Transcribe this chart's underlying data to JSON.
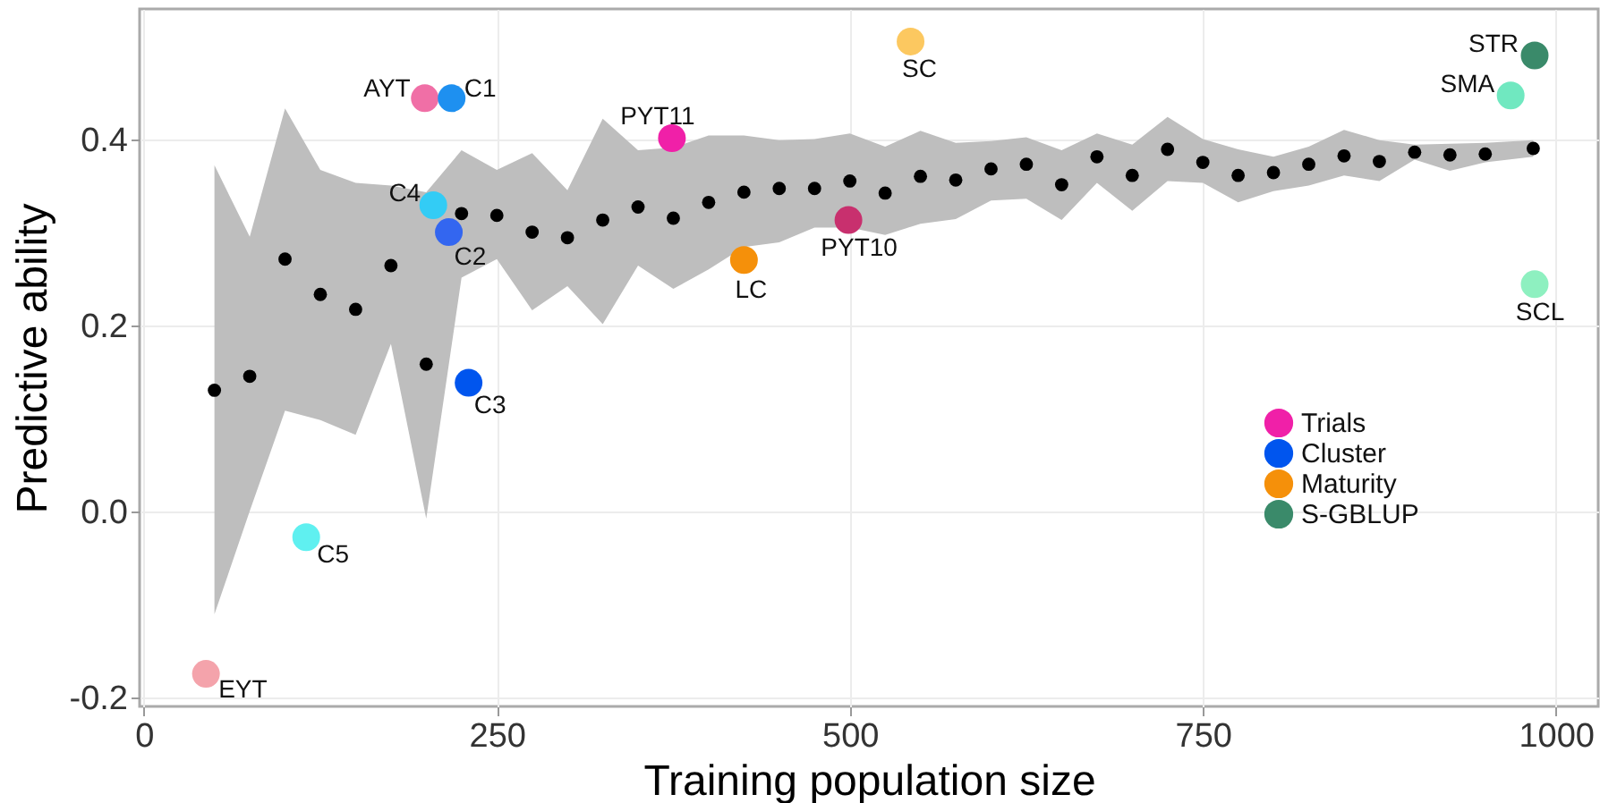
{
  "chart_data": {
    "type": "scatter",
    "xlabel": "Training population size",
    "ylabel": "Predictive ability",
    "xlim": [
      -3,
      1030
    ],
    "ylim": [
      -0.21,
      0.54
    ],
    "xticks": [
      0,
      250,
      500,
      750,
      1000
    ],
    "yticks": [
      -0.2,
      {
        "value": 0,
        "label": "0.0"
      },
      0.2,
      0.4
    ],
    "grid": true,
    "legend": "bottom right",
    "marker": "circle",
    "series": [
      {
        "color": "#000000",
        "x": [
          50,
          75,
          100,
          125,
          150,
          175,
          200,
          225,
          250,
          275,
          300,
          325,
          350,
          375,
          400,
          425,
          450,
          475,
          500,
          525,
          550,
          575,
          600,
          625,
          650,
          675,
          700,
          725,
          750,
          775,
          800,
          825,
          850,
          875,
          900,
          925,
          950,
          984
        ],
        "values": [
          0.13,
          0.145,
          0.271,
          0.233,
          0.217,
          0.264,
          0.158,
          0.32,
          0.318,
          0.3,
          0.294,
          0.313,
          0.327,
          0.315,
          0.332,
          0.343,
          0.347,
          0.347,
          0.355,
          0.342,
          0.36,
          0.356,
          0.368,
          0.373,
          0.351,
          0.381,
          0.361,
          0.389,
          0.375,
          0.361,
          0.364,
          0.373,
          0.382,
          0.376,
          0.386,
          0.383,
          0.384,
          0.39
        ],
        "lower": [
          -0.111,
          0.0,
          0.108,
          0.098,
          0.082,
          0.18,
          -0.008,
          0.251,
          0.271,
          0.216,
          0.242,
          0.201,
          0.264,
          0.239,
          0.26,
          0.284,
          0.289,
          0.305,
          0.305,
          0.297,
          0.309,
          0.314,
          0.334,
          0.336,
          0.313,
          0.353,
          0.323,
          0.355,
          0.353,
          0.332,
          0.344,
          0.35,
          0.361,
          0.355,
          0.378,
          0.366,
          0.375,
          0.381
        ],
        "upper": [
          0.372,
          0.295,
          0.433,
          0.367,
          0.353,
          0.35,
          0.343,
          0.388,
          0.367,
          0.385,
          0.345,
          0.422,
          0.388,
          0.391,
          0.404,
          0.404,
          0.399,
          0.4,
          0.406,
          0.392,
          0.409,
          0.396,
          0.398,
          0.402,
          0.388,
          0.406,
          0.394,
          0.424,
          0.4,
          0.389,
          0.381,
          0.392,
          0.41,
          0.399,
          0.394,
          0.395,
          0.396,
          0.399
        ]
      },
      {
        "name": "Trials",
        "color": "#f020a8",
        "x": [
          44,
          199,
          374,
          499
        ],
        "values": [
          -0.175,
          0.444,
          0.401,
          0.313
        ],
        "colors": [
          "#f4a3ab",
          "#f06fa6",
          "#f020a8",
          "#c8306e"
        ]
      },
      {
        "name": "Cluster",
        "color": "#0055ee",
        "x": [
          218,
          205,
          216,
          230,
          115
        ],
        "values": [
          0.444,
          0.329,
          0.3,
          0.138,
          -0.028
        ],
        "colors": [
          "#1e90f0",
          "#33ccf5",
          "#3366f0",
          "#0055ee",
          "#5ff0f0"
        ]
      },
      {
        "name": "Maturity",
        "color": "#f5900a",
        "x": [
          425,
          543
        ],
        "values": [
          0.27,
          0.505
        ],
        "colors": [
          "#f5900a",
          "#fcc860"
        ]
      },
      {
        "name": "S-GBLUP",
        "color": "#3a8a6a",
        "x": [
          985,
          968,
          985
        ],
        "values": [
          0.49,
          0.447,
          0.244
        ],
        "colors": [
          "#3a8a6a",
          "#70e8c0",
          "#8ef0c0"
        ]
      }
    ],
    "annotations": [
      {
        "text": "EYT",
        "x": 44,
        "y": -0.175
      },
      {
        "text": "C5",
        "x": 115,
        "y": -0.028
      },
      {
        "text": "AYT",
        "x": 199,
        "y": 0.444
      },
      {
        "text": "C1",
        "x": 218,
        "y": 0.444
      },
      {
        "text": "C4",
        "x": 205,
        "y": 0.329
      },
      {
        "text": "C2",
        "x": 216,
        "y": 0.3
      },
      {
        "text": "C3",
        "x": 230,
        "y": 0.138
      },
      {
        "text": "PYT11",
        "x": 374,
        "y": 0.401
      },
      {
        "text": "LC",
        "x": 425,
        "y": 0.27
      },
      {
        "text": "PYT10",
        "x": 499,
        "y": 0.313
      },
      {
        "text": "SC",
        "x": 543,
        "y": 0.505
      },
      {
        "text": "STR",
        "x": 985,
        "y": 0.49
      },
      {
        "text": "SMA",
        "x": 968,
        "y": 0.447
      },
      {
        "text": "SCL",
        "x": 985,
        "y": 0.244
      }
    ]
  }
}
